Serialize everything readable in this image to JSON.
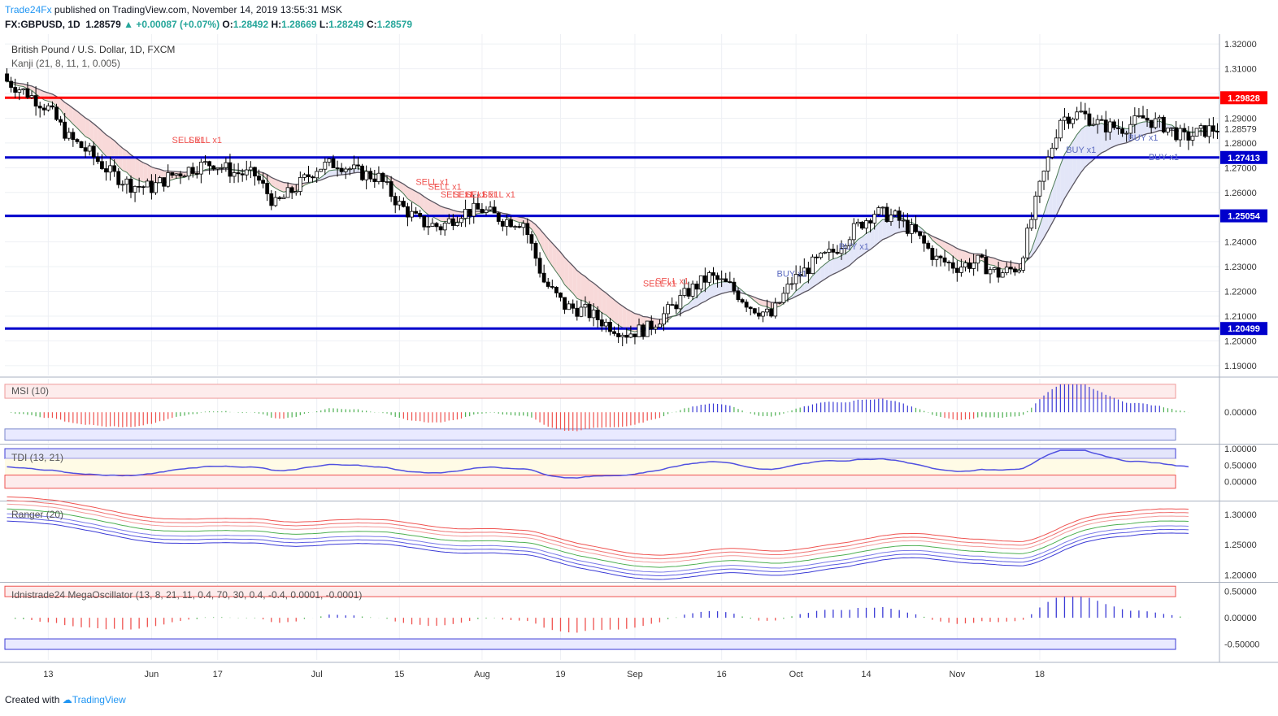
{
  "header": {
    "publisher": "Trade24Fx",
    "published_text": " published on TradingView.com, November 14, 2019 13:55:31 MSK",
    "symbol": "FX:GBPUSD, 1D",
    "last": "1.28579",
    "change": "+0.00087 (+0.07%)",
    "open_label": "O:",
    "open": "1.28492",
    "high_label": "H:",
    "high": "1.28669",
    "low_label": "L:",
    "low": "1.28249",
    "close_label": "C:",
    "close": "1.28579"
  },
  "main_title": "British Pound / U.S. Dollar, 1D, FXCM",
  "indicator_label": "Kanji (21, 8, 11, 1, 0.005)",
  "footer": {
    "created_with": "Created with",
    "brand": "TradingView"
  },
  "colors": {
    "up": "#26a69a",
    "red_line": "#ff0000",
    "blue_line": "#0000cc",
    "accent": "#2196f3"
  },
  "chart_data": [
    {
      "type": "candlestick",
      "title": "British Pound / U.S. Dollar, 1D, FXCM",
      "ylim": [
        1.186,
        1.324
      ],
      "y_ticks": [
        "1.32000",
        "1.31000",
        "1.29000",
        "1.28579",
        "1.28000",
        "1.27000",
        "1.26000",
        "1.24000",
        "1.23000",
        "1.22000",
        "1.21000",
        "1.20000",
        "1.19000"
      ],
      "x_ticks": [
        "13",
        "Jun",
        "17",
        "Jul",
        "15",
        "Aug",
        "19",
        "Sep",
        "16",
        "Oct",
        "14",
        "Nov",
        "18"
      ],
      "levels": [
        {
          "label": "1.29828",
          "value": 1.29828,
          "color": "#ff0000"
        },
        {
          "label": "1.27413",
          "value": 1.27413,
          "color": "#0000cc"
        },
        {
          "label": "1.25054",
          "value": 1.25054,
          "color": "#0000cc"
        },
        {
          "label": "1.20499",
          "value": 1.20499,
          "color": "#0000cc"
        }
      ],
      "last_price_label": "1.28579",
      "anchors": [
        [
          0,
          1.305
        ],
        [
          5,
          1.3
        ],
        [
          10,
          1.294
        ],
        [
          15,
          1.282
        ],
        [
          20,
          1.276
        ],
        [
          25,
          1.268
        ],
        [
          30,
          1.263
        ],
        [
          35,
          1.262
        ],
        [
          40,
          1.267
        ],
        [
          45,
          1.27
        ],
        [
          50,
          1.272
        ],
        [
          55,
          1.268
        ],
        [
          60,
          1.267
        ],
        [
          65,
          1.255
        ],
        [
          70,
          1.262
        ],
        [
          75,
          1.27
        ],
        [
          80,
          1.272
        ],
        [
          85,
          1.268
        ],
        [
          90,
          1.266
        ],
        [
          95,
          1.255
        ],
        [
          100,
          1.248
        ],
        [
          105,
          1.246
        ],
        [
          110,
          1.252
        ],
        [
          115,
          1.253
        ],
        [
          120,
          1.249
        ],
        [
          125,
          1.248
        ],
        [
          130,
          1.224
        ],
        [
          135,
          1.214
        ],
        [
          140,
          1.212
        ],
        [
          145,
          1.207
        ],
        [
          150,
          1.203
        ],
        [
          155,
          1.205
        ],
        [
          160,
          1.212
        ],
        [
          165,
          1.22
        ],
        [
          170,
          1.226
        ],
        [
          175,
          1.222
        ],
        [
          180,
          1.214
        ],
        [
          185,
          1.21
        ],
        [
          190,
          1.224
        ],
        [
          195,
          1.231
        ],
        [
          200,
          1.236
        ],
        [
          205,
          1.245
        ],
        [
          210,
          1.252
        ],
        [
          215,
          1.25
        ],
        [
          220,
          1.243
        ],
        [
          225,
          1.233
        ],
        [
          230,
          1.23
        ],
        [
          235,
          1.232
        ],
        [
          240,
          1.227
        ],
        [
          245,
          1.23
        ],
        [
          250,
          1.262
        ],
        [
          255,
          1.29
        ],
        [
          260,
          1.292
        ],
        [
          265,
          1.287
        ],
        [
          270,
          1.286
        ],
        [
          275,
          1.29
        ],
        [
          280,
          1.287
        ],
        [
          285,
          1.282
        ],
        [
          290,
          1.285
        ],
        [
          293,
          1.286
        ]
      ],
      "signals": [
        {
          "label": "SELL x1",
          "value": 1.28
        },
        {
          "label": "SELL x1",
          "value": 1.28
        },
        {
          "label": "SELL x1",
          "value": 1.263
        },
        {
          "label": "SELL x1",
          "value": 1.261
        },
        {
          "label": "SELL x1",
          "value": 1.258
        },
        {
          "label": "SELL x1",
          "value": 1.258
        },
        {
          "label": "SELL x1",
          "value": 1.258
        },
        {
          "label": "SELL x1",
          "value": 1.258
        },
        {
          "label": "SELL x1",
          "value": 1.222
        },
        {
          "label": "SELL x1",
          "value": 1.223
        },
        {
          "label": "BUY x1",
          "value": 1.226
        },
        {
          "label": "BUY x1",
          "value": 1.237
        },
        {
          "label": "BUY x1",
          "value": 1.276
        },
        {
          "label": "BUY x1",
          "value": 1.281
        },
        {
          "label": "BUY x1",
          "value": 1.273
        }
      ]
    },
    {
      "type": "bar",
      "title": "MSI (10)",
      "ylim": [
        -0.11,
        0.12
      ],
      "y_ticks": [
        "0.00000"
      ],
      "upper_band": [
        0.05,
        0.1
      ],
      "lower_band": [
        -0.1,
        -0.06
      ]
    },
    {
      "type": "line",
      "title": "TDI (13, 21)",
      "ylim": [
        -0.55,
        1.1
      ],
      "y_ticks": [
        "1.00000",
        "0.50000",
        "0.00000"
      ],
      "upper_band": [
        0.7,
        1.0
      ],
      "lower_band": [
        -0.2,
        0.2
      ]
    },
    {
      "type": "line",
      "title": "Ranger (20)",
      "ylim": [
        1.19,
        1.32
      ],
      "y_ticks": [
        "1.30000",
        "1.25000",
        "1.20000"
      ]
    },
    {
      "type": "bar",
      "title": "Idnistrade24 MegaOscillator (13, 8, 21, 11, 0.4, 70, 30, 0.4, -0.4, 0.0001, -0.0001)",
      "ylim": [
        -0.8,
        0.65
      ],
      "y_ticks": [
        "0.50000",
        "0.00000",
        "-0.50000"
      ],
      "upper_band": [
        0.4,
        0.6
      ],
      "lower_band": [
        -0.6,
        -0.4
      ]
    }
  ]
}
